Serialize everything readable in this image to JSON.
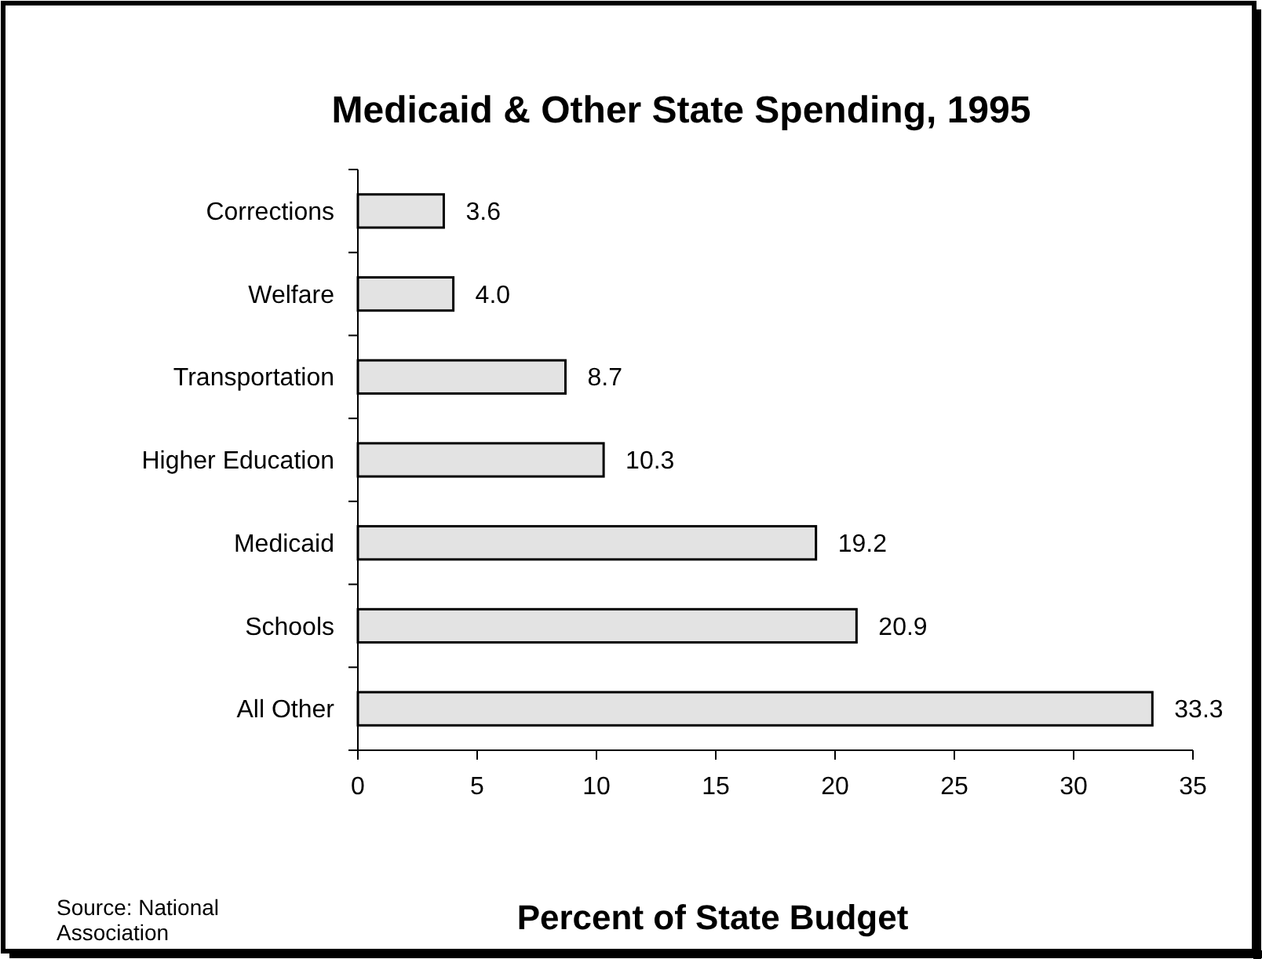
{
  "chart_data": {
    "type": "bar",
    "orientation": "horizontal",
    "title": "Medicaid & Other State Spending, 1995",
    "xlabel": "Percent of State Budget",
    "categories": [
      "Corrections",
      "Welfare",
      "Transportation",
      "Higher Education",
      "Medicaid",
      "Schools",
      "All Other"
    ],
    "values": [
      3.6,
      4.0,
      8.7,
      10.3,
      19.2,
      20.9,
      33.3
    ],
    "color": "#e3e3e3",
    "value_labels": [
      "3.6",
      "4.0",
      "8.7",
      "10.3",
      "19.2",
      "20.9",
      "33.3"
    ],
    "xlim": [
      0,
      35
    ],
    "xticks": [
      0,
      5,
      10,
      15,
      20,
      25,
      30,
      35
    ],
    "grid": false,
    "annotations": [
      "Source: National Association"
    ]
  }
}
